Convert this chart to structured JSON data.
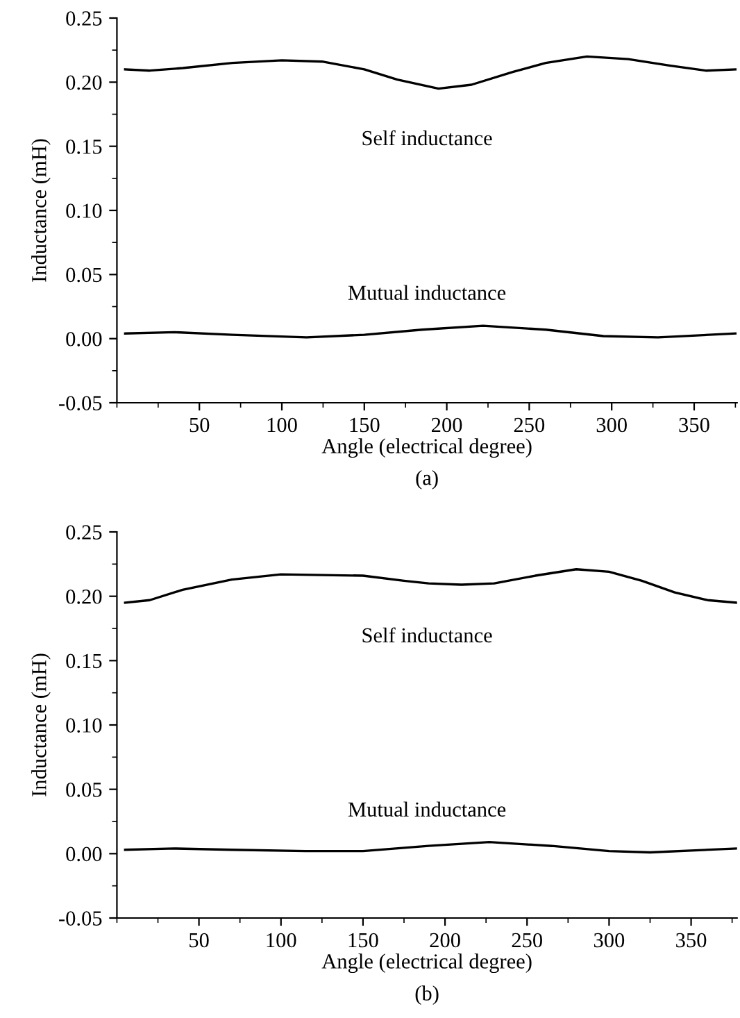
{
  "chart_data": [
    {
      "type": "line",
      "xlabel": "Angle (electrical degree)",
      "ylabel": "Inductance (mH)",
      "annotations": [
        "(a)"
      ],
      "xlim": [
        0,
        376
      ],
      "ylim": [
        -0.05,
        0.25
      ],
      "xticks": [
        50,
        100,
        150,
        200,
        250,
        300,
        350
      ],
      "yticks": [
        {
          "value": -0.05,
          "label": "-0.05"
        },
        {
          "value": 0.0,
          "label": "0.00"
        },
        {
          "value": 0.05,
          "label": "0.05"
        },
        {
          "value": 0.1,
          "label": "0.10"
        },
        {
          "value": 0.15,
          "label": "0.15"
        },
        {
          "value": 0.2,
          "label": "0.20"
        },
        {
          "value": 0.25,
          "label": "0.25"
        }
      ],
      "grid": false,
      "legend": false,
      "marker": "none",
      "line_style": "solid",
      "series": [
        {
          "name": "Self inductance",
          "color": "#000000",
          "x": [
            5,
            20,
            40,
            70,
            100,
            125,
            150,
            170,
            195,
            215,
            240,
            260,
            285,
            310,
            335,
            357,
            375
          ],
          "values": [
            0.21,
            0.209,
            0.211,
            0.215,
            0.217,
            0.216,
            0.21,
            0.202,
            0.195,
            0.198,
            0.208,
            0.215,
            0.22,
            0.218,
            0.213,
            0.209,
            0.21
          ]
        },
        {
          "name": "Mutual inductance",
          "color": "#000000",
          "x": [
            5,
            35,
            70,
            115,
            150,
            185,
            222,
            260,
            295,
            328,
            375
          ],
          "values": [
            0.004,
            0.005,
            0.003,
            0.001,
            0.003,
            0.007,
            0.01,
            0.007,
            0.002,
            0.001,
            0.004
          ]
        }
      ]
    },
    {
      "type": "line",
      "xlabel": "Angle (electrical degree)",
      "ylabel": "Inductance (mH)",
      "annotations": [
        "(b)"
      ],
      "xlim": [
        0,
        378
      ],
      "ylim": [
        -0.05,
        0.25
      ],
      "xticks": [
        50,
        100,
        150,
        200,
        250,
        300,
        350
      ],
      "yticks": [
        {
          "value": -0.05,
          "label": "-0.05"
        },
        {
          "value": 0.0,
          "label": "0.00"
        },
        {
          "value": 0.05,
          "label": "0.05"
        },
        {
          "value": 0.1,
          "label": "0.10"
        },
        {
          "value": 0.15,
          "label": "0.15"
        },
        {
          "value": 0.2,
          "label": "0.20"
        },
        {
          "value": 0.25,
          "label": "0.25"
        }
      ],
      "grid": false,
      "legend": false,
      "marker": "none",
      "line_style": "solid",
      "series": [
        {
          "name": "Self inductance",
          "color": "#000000",
          "x": [
            5,
            20,
            40,
            70,
            100,
            150,
            175,
            190,
            210,
            230,
            255,
            280,
            300,
            320,
            340,
            360,
            378
          ],
          "values": [
            0.195,
            0.197,
            0.205,
            0.213,
            0.217,
            0.216,
            0.212,
            0.21,
            0.209,
            0.21,
            0.216,
            0.221,
            0.219,
            0.212,
            0.203,
            0.197,
            0.195
          ]
        },
        {
          "name": "Mutual inductance",
          "color": "#000000",
          "x": [
            5,
            35,
            70,
            115,
            150,
            190,
            227,
            265,
            300,
            325,
            378
          ],
          "values": [
            0.003,
            0.004,
            0.003,
            0.002,
            0.002,
            0.006,
            0.009,
            0.006,
            0.002,
            0.001,
            0.004
          ]
        }
      ]
    }
  ]
}
